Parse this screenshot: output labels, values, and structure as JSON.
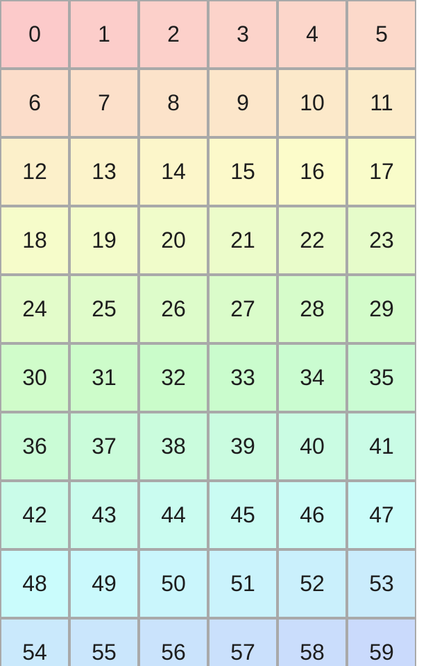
{
  "page": {
    "background": "#ffffff"
  },
  "grid": {
    "columns": 6,
    "rows": 10,
    "border_color": "#a9a9a9",
    "text_color": "#1d1d1d",
    "cells": [
      {
        "label": "0",
        "color": "#fccaca"
      },
      {
        "label": "1",
        "color": "#fccdca"
      },
      {
        "label": "2",
        "color": "#fcd0ca"
      },
      {
        "label": "3",
        "color": "#fcd3ca"
      },
      {
        "label": "4",
        "color": "#fcd6ca"
      },
      {
        "label": "5",
        "color": "#fcd9ca"
      },
      {
        "label": "6",
        "color": "#fcddca"
      },
      {
        "label": "7",
        "color": "#fce0ca"
      },
      {
        "label": "8",
        "color": "#fce3ca"
      },
      {
        "label": "9",
        "color": "#fce6ca"
      },
      {
        "label": "10",
        "color": "#fce9ca"
      },
      {
        "label": "11",
        "color": "#fcecca"
      },
      {
        "label": "12",
        "color": "#fcf0ca"
      },
      {
        "label": "13",
        "color": "#fcf3ca"
      },
      {
        "label": "14",
        "color": "#fcf6ca"
      },
      {
        "label": "15",
        "color": "#fcf9ca"
      },
      {
        "label": "16",
        "color": "#fcfcca"
      },
      {
        "label": "17",
        "color": "#f9fcca"
      },
      {
        "label": "18",
        "color": "#f6fcca"
      },
      {
        "label": "19",
        "color": "#f3fcca"
      },
      {
        "label": "20",
        "color": "#f0fcca"
      },
      {
        "label": "21",
        "color": "#ecfcca"
      },
      {
        "label": "22",
        "color": "#e9fcca"
      },
      {
        "label": "23",
        "color": "#e6fcca"
      },
      {
        "label": "24",
        "color": "#e3fcca"
      },
      {
        "label": "25",
        "color": "#e0fcca"
      },
      {
        "label": "26",
        "color": "#ddfcca"
      },
      {
        "label": "27",
        "color": "#dafcca"
      },
      {
        "label": "28",
        "color": "#d6fcca"
      },
      {
        "label": "29",
        "color": "#d3fcca"
      },
      {
        "label": "30",
        "color": "#d0fcca"
      },
      {
        "label": "31",
        "color": "#cdfcca"
      },
      {
        "label": "32",
        "color": "#cafcca"
      },
      {
        "label": "33",
        "color": "#cafccd"
      },
      {
        "label": "34",
        "color": "#cafcd0"
      },
      {
        "label": "35",
        "color": "#cafcd3"
      },
      {
        "label": "36",
        "color": "#cafcd6"
      },
      {
        "label": "37",
        "color": "#cafcda"
      },
      {
        "label": "38",
        "color": "#cafcdd"
      },
      {
        "label": "39",
        "color": "#cafce0"
      },
      {
        "label": "40",
        "color": "#cafce3"
      },
      {
        "label": "41",
        "color": "#cafce6"
      },
      {
        "label": "42",
        "color": "#cafce9"
      },
      {
        "label": "43",
        "color": "#cafcec"
      },
      {
        "label": "44",
        "color": "#cafcf0"
      },
      {
        "label": "45",
        "color": "#cafcf3"
      },
      {
        "label": "46",
        "color": "#cafcf6"
      },
      {
        "label": "47",
        "color": "#cafcf9"
      },
      {
        "label": "48",
        "color": "#cafcfc"
      },
      {
        "label": "49",
        "color": "#caf9fc"
      },
      {
        "label": "50",
        "color": "#caf6fc"
      },
      {
        "label": "51",
        "color": "#caf3fc"
      },
      {
        "label": "52",
        "color": "#caf0fc"
      },
      {
        "label": "53",
        "color": "#caecfc"
      },
      {
        "label": "54",
        "color": "#cae9fc"
      },
      {
        "label": "55",
        "color": "#cae6fc"
      },
      {
        "label": "56",
        "color": "#cae3fc"
      },
      {
        "label": "57",
        "color": "#cae0fc"
      },
      {
        "label": "58",
        "color": "#caddfc"
      },
      {
        "label": "59",
        "color": "#cadafc"
      }
    ]
  }
}
